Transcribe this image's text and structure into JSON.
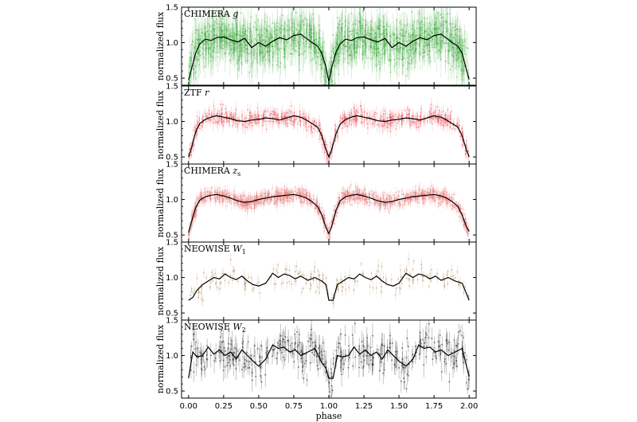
{
  "chart_data": {
    "type": "scatter",
    "shared_x": {
      "label": "phase",
      "lim": [
        -0.05,
        2.05
      ],
      "ticks": [
        "0.00",
        "0.25",
        "0.50",
        "0.75",
        "1.00",
        "1.25",
        "1.50",
        "1.75",
        "2.00"
      ]
    },
    "panels": [
      {
        "title_main": "CHIMERA ",
        "title_band": "g",
        "title_sub": "",
        "ylabel": "normalized flux",
        "ylim": [
          0.4,
          1.5
        ],
        "yticks": [
          "0.5",
          "1.0",
          "1.5"
        ],
        "point_color": "#2ca02c",
        "trend_x": [
          0.0,
          0.02,
          0.05,
          0.08,
          0.12,
          0.16,
          0.2,
          0.25,
          0.3,
          0.35,
          0.4,
          0.45,
          0.5,
          0.55,
          0.6,
          0.65,
          0.7,
          0.75,
          0.8,
          0.84,
          0.88,
          0.92,
          0.95,
          0.98,
          1.0,
          1.02,
          1.05,
          1.08,
          1.12,
          1.16,
          1.2,
          1.25,
          1.3,
          1.35,
          1.4,
          1.45,
          1.5,
          1.55,
          1.6,
          1.65,
          1.7,
          1.75,
          1.8,
          1.84,
          1.88,
          1.92,
          1.95,
          1.98,
          2.0
        ],
        "trend_y": [
          0.47,
          0.62,
          0.85,
          0.98,
          1.05,
          1.03,
          1.07,
          1.08,
          1.04,
          1.01,
          1.06,
          0.93,
          1.0,
          0.95,
          1.02,
          1.07,
          1.04,
          1.1,
          1.12,
          1.06,
          1.0,
          0.95,
          0.85,
          0.65,
          0.45,
          0.64,
          0.86,
          0.98,
          1.05,
          1.03,
          1.07,
          1.08,
          1.04,
          1.01,
          1.06,
          0.93,
          1.0,
          0.95,
          1.02,
          1.07,
          1.04,
          1.1,
          1.12,
          1.06,
          1.0,
          0.95,
          0.85,
          0.62,
          0.48
        ],
        "scatter": 0.16,
        "errbar": 0.18
      },
      {
        "title_main": "ZTF ",
        "title_band": "r",
        "title_sub": "",
        "ylabel": "normalized flux",
        "ylim": [
          0.4,
          1.5
        ],
        "yticks": [
          "0.5",
          "1.0",
          "1.5"
        ],
        "point_color": "#e8434a",
        "trend_x": [
          0.0,
          0.02,
          0.05,
          0.08,
          0.12,
          0.16,
          0.2,
          0.25,
          0.3,
          0.35,
          0.4,
          0.45,
          0.5,
          0.55,
          0.6,
          0.65,
          0.7,
          0.75,
          0.8,
          0.84,
          0.88,
          0.92,
          0.95,
          0.98,
          1.0,
          1.02,
          1.05,
          1.08,
          1.12,
          1.16,
          1.2,
          1.25,
          1.3,
          1.35,
          1.4,
          1.45,
          1.5,
          1.55,
          1.6,
          1.65,
          1.7,
          1.75,
          1.8,
          1.84,
          1.88,
          1.92,
          1.95,
          1.98,
          2.0
        ],
        "trend_y": [
          0.5,
          0.62,
          0.85,
          0.97,
          1.03,
          1.06,
          1.08,
          1.06,
          1.04,
          1.01,
          1.0,
          1.02,
          1.03,
          1.05,
          1.04,
          1.02,
          1.05,
          1.08,
          1.06,
          1.02,
          0.97,
          0.92,
          0.8,
          0.6,
          0.5,
          0.6,
          0.82,
          0.96,
          1.03,
          1.06,
          1.08,
          1.06,
          1.04,
          1.01,
          1.0,
          1.02,
          1.03,
          1.05,
          1.04,
          1.02,
          1.05,
          1.08,
          1.06,
          1.02,
          0.97,
          0.92,
          0.8,
          0.6,
          0.5
        ],
        "scatter": 0.06,
        "errbar": 0.08
      },
      {
        "title_main": "CHIMERA ",
        "title_band": "z",
        "title_sub": "s",
        "ylabel": "normalized flux",
        "ylim": [
          0.4,
          1.5
        ],
        "yticks": [
          "0.5",
          "1.0",
          "1.5"
        ],
        "point_color": "#e97a7a",
        "trend_x": [
          0.0,
          0.02,
          0.05,
          0.08,
          0.12,
          0.16,
          0.2,
          0.25,
          0.3,
          0.35,
          0.4,
          0.45,
          0.5,
          0.55,
          0.6,
          0.65,
          0.7,
          0.75,
          0.8,
          0.84,
          0.88,
          0.92,
          0.95,
          0.98,
          1.0,
          1.02,
          1.05,
          1.08,
          1.12,
          1.16,
          1.2,
          1.25,
          1.3,
          1.35,
          1.4,
          1.45,
          1.5,
          1.55,
          1.6,
          1.65,
          1.7,
          1.75,
          1.8,
          1.84,
          1.88,
          1.92,
          1.95,
          1.98,
          2.0
        ],
        "trend_y": [
          0.53,
          0.68,
          0.88,
          0.99,
          1.04,
          1.06,
          1.07,
          1.05,
          1.02,
          0.98,
          0.96,
          0.97,
          1.0,
          1.02,
          1.04,
          1.05,
          1.06,
          1.07,
          1.05,
          1.02,
          0.97,
          0.9,
          0.78,
          0.6,
          0.52,
          0.62,
          0.84,
          0.98,
          1.04,
          1.06,
          1.07,
          1.05,
          1.02,
          0.98,
          0.96,
          0.97,
          1.0,
          1.02,
          1.04,
          1.05,
          1.06,
          1.07,
          1.05,
          1.02,
          0.97,
          0.9,
          0.78,
          0.62,
          0.55
        ],
        "scatter": 0.05,
        "errbar": 0.06
      },
      {
        "title_main": "NEOWISE ",
        "title_band": "W",
        "title_sub": "1",
        "ylabel": "normalized flux",
        "ylim": [
          0.4,
          1.5
        ],
        "yticks": [
          "0.5",
          "1.0",
          "1.5"
        ],
        "point_color": "#a0793d",
        "trend_x": [
          0.0,
          0.03,
          0.06,
          0.1,
          0.14,
          0.18,
          0.22,
          0.26,
          0.3,
          0.34,
          0.38,
          0.42,
          0.46,
          0.5,
          0.55,
          0.6,
          0.64,
          0.68,
          0.72,
          0.76,
          0.8,
          0.85,
          0.9,
          0.95,
          0.98,
          1.0,
          1.03,
          1.06,
          1.1,
          1.14,
          1.18,
          1.22,
          1.26,
          1.3,
          1.34,
          1.38,
          1.42,
          1.46,
          1.5,
          1.55,
          1.6,
          1.64,
          1.68,
          1.72,
          1.76,
          1.8,
          1.85,
          1.9,
          1.95,
          2.0
        ],
        "trend_y": [
          0.68,
          0.72,
          0.82,
          0.9,
          0.95,
          1.0,
          0.98,
          1.05,
          1.0,
          0.97,
          1.02,
          0.95,
          0.9,
          0.88,
          0.92,
          1.06,
          1.0,
          1.05,
          1.03,
          0.98,
          1.02,
          0.96,
          1.0,
          0.95,
          0.9,
          0.68,
          0.68,
          0.9,
          0.95,
          1.0,
          0.98,
          1.05,
          1.0,
          0.97,
          1.02,
          0.95,
          0.9,
          0.88,
          0.92,
          1.06,
          1.0,
          1.05,
          1.03,
          0.98,
          1.02,
          0.96,
          1.0,
          0.95,
          0.92,
          0.68
        ],
        "scatter": 0.09,
        "errbar": 0.07
      },
      {
        "title_main": "NEOWISE ",
        "title_band": "W",
        "title_sub": "2",
        "ylabel": "normalized flux",
        "ylim": [
          0.4,
          1.5
        ],
        "yticks": [
          "0.5",
          "1.0",
          "1.5"
        ],
        "point_color": "#333333",
        "trend_x": [
          0.0,
          0.03,
          0.06,
          0.1,
          0.14,
          0.18,
          0.22,
          0.26,
          0.3,
          0.34,
          0.38,
          0.42,
          0.46,
          0.5,
          0.55,
          0.6,
          0.64,
          0.68,
          0.72,
          0.76,
          0.8,
          0.85,
          0.9,
          0.95,
          0.98,
          1.0,
          1.03,
          1.06,
          1.1,
          1.14,
          1.18,
          1.22,
          1.26,
          1.3,
          1.34,
          1.38,
          1.42,
          1.46,
          1.5,
          1.55,
          1.6,
          1.64,
          1.68,
          1.72,
          1.76,
          1.8,
          1.85,
          1.9,
          1.95,
          2.0
        ],
        "trend_y": [
          0.68,
          1.05,
          0.98,
          1.0,
          1.12,
          1.02,
          1.08,
          1.0,
          1.05,
          0.95,
          1.08,
          1.0,
          0.92,
          0.85,
          0.95,
          1.15,
          1.1,
          1.12,
          1.05,
          1.08,
          1.0,
          1.05,
          1.1,
          0.9,
          0.82,
          0.68,
          0.68,
          1.0,
          0.98,
          1.0,
          1.12,
          1.02,
          1.08,
          1.0,
          1.05,
          0.95,
          1.08,
          1.0,
          0.92,
          0.85,
          0.95,
          1.15,
          1.1,
          1.12,
          1.05,
          1.08,
          1.0,
          1.05,
          1.1,
          0.7
        ],
        "scatter": 0.13,
        "errbar": 0.12
      }
    ]
  }
}
